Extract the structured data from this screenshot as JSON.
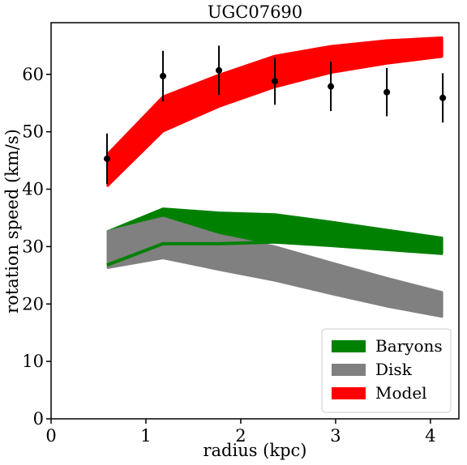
{
  "chart_data": {
    "type": "area",
    "title": "UGC07690",
    "xlabel": "radius (kpc)",
    "ylabel": "rotation speed (km/s)",
    "xlim": [
      0,
      4.3
    ],
    "ylim": [
      0,
      69
    ],
    "xticks": [
      0,
      1,
      2,
      3,
      4
    ],
    "yticks": [
      0,
      10,
      20,
      30,
      40,
      50,
      60
    ],
    "grid": false,
    "legend_position": "bottom-right",
    "bands": [
      {
        "name": "Baryons",
        "color": "#008000",
        "x": [
          0.59,
          1.18,
          1.77,
          2.36,
          2.95,
          3.54,
          4.13
        ],
        "lower": [
          26.8,
          30.5,
          30.5,
          30.8,
          30.2,
          29.5,
          28.8
        ],
        "upper": [
          32.6,
          36.6,
          35.9,
          35.6,
          34.3,
          32.9,
          31.5
        ]
      },
      {
        "name": "Disk",
        "color": "#808080",
        "x": [
          0.59,
          1.18,
          1.77,
          2.36,
          2.95,
          3.54,
          4.13
        ],
        "lower": [
          26.3,
          28.0,
          26.0,
          24.1,
          21.8,
          19.6,
          17.8
        ],
        "upper": [
          32.6,
          35.0,
          32.0,
          30.0,
          27.2,
          24.5,
          22.0
        ]
      },
      {
        "name": "Model",
        "color": "#ff0000",
        "x": [
          0.59,
          1.18,
          1.77,
          2.36,
          2.95,
          3.54,
          4.13
        ],
        "lower": [
          40.5,
          50.1,
          54.4,
          57.8,
          60.3,
          61.9,
          63.1
        ],
        "upper": [
          46.0,
          56.1,
          59.9,
          63.2,
          64.9,
          65.9,
          66.4
        ]
      }
    ],
    "observations": {
      "color": "#000000",
      "x": [
        0.59,
        1.18,
        1.77,
        2.36,
        2.95,
        3.54,
        4.13
      ],
      "y": [
        45.3,
        59.7,
        60.7,
        58.8,
        57.9,
        56.9,
        55.9
      ],
      "yerr": [
        4.4,
        4.4,
        4.3,
        4.1,
        4.3,
        4.2,
        4.3
      ]
    },
    "legend": [
      "Baryons",
      "Disk",
      "Model"
    ]
  }
}
